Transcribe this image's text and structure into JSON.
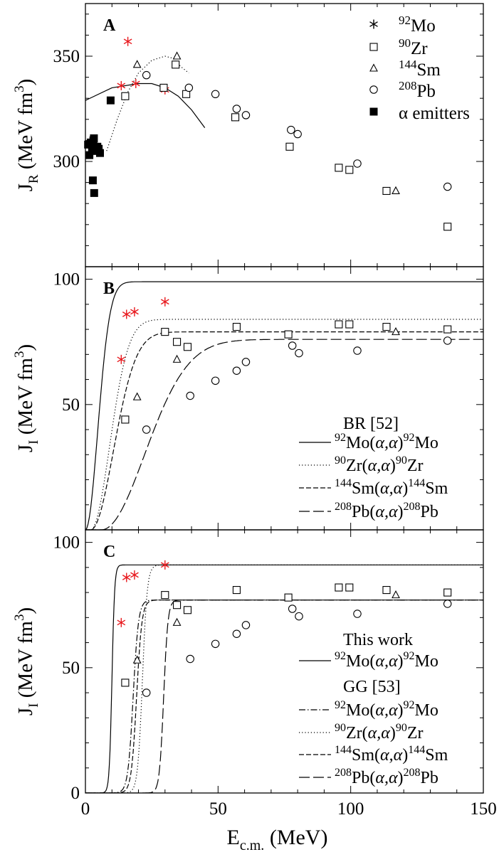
{
  "chart_data": [
    {
      "type": "scatter",
      "panel_label": "A",
      "ylabel_main": "J",
      "ylabel_sub": "R",
      "ylabel_rest": " (MeV fm",
      "ylabel_sup": "3",
      "ylabel_close": ")",
      "xlim": [
        0,
        150
      ],
      "ylim": [
        250,
        375
      ],
      "yticks": [
        300,
        350
      ],
      "ytick_labels": [
        "300",
        "350"
      ],
      "legend": [
        {
          "sup": "92",
          "text": "Mo",
          "marker": "asterisk"
        },
        {
          "sup": "90",
          "text": "Zr",
          "marker": "square"
        },
        {
          "sup": "144",
          "text": "Sm",
          "marker": "triangle"
        },
        {
          "sup": "208",
          "text": "Pb",
          "marker": "circle"
        },
        {
          "sup": "",
          "text": "α emitters",
          "marker": "filled-square"
        }
      ],
      "series": [
        {
          "marker": "asterisk",
          "color": "#e8191e",
          "points": [
            [
              13.5,
              336
            ],
            [
              16,
              357
            ],
            [
              19,
              337
            ],
            [
              30,
              334
            ]
          ]
        },
        {
          "marker": "square",
          "color": "#000000",
          "points": [
            [
              15,
              331
            ],
            [
              29.5,
              335
            ],
            [
              34,
              346
            ],
            [
              38,
              332
            ],
            [
              56.5,
              321
            ],
            [
              77,
              307
            ],
            [
              95.5,
              297
            ],
            [
              99.5,
              296
            ],
            [
              113.5,
              286
            ],
            [
              136.5,
              269
            ]
          ]
        },
        {
          "marker": "triangle",
          "color": "#000000",
          "points": [
            [
              19.5,
              346
            ],
            [
              34.5,
              350
            ],
            [
              117,
              286
            ]
          ]
        },
        {
          "marker": "circle",
          "color": "#000000",
          "points": [
            [
              23,
              341
            ],
            [
              39,
              335
            ],
            [
              49,
              332
            ],
            [
              57,
              325
            ],
            [
              60.5,
              322
            ],
            [
              77.5,
              315
            ],
            [
              80,
              313
            ],
            [
              102.5,
              299
            ],
            [
              136.5,
              288
            ]
          ]
        },
        {
          "marker": "filled-square",
          "color": "#000000",
          "points": [
            [
              1,
              308
            ],
            [
              1.5,
              303
            ],
            [
              2,
              309
            ],
            [
              2.5,
              305
            ],
            [
              3,
              310
            ],
            [
              3.2,
              311
            ],
            [
              3.5,
              307
            ],
            [
              4,
              305
            ],
            [
              4.5,
              307
            ],
            [
              5,
              306
            ],
            [
              5.5,
              304
            ],
            [
              2.8,
              291
            ],
            [
              3.3,
              285
            ],
            [
              9.5,
              329
            ]
          ]
        }
      ],
      "curves": [
        {
          "style": "solid",
          "points": [
            [
              0,
              329
            ],
            [
              10,
              335
            ],
            [
              20,
              337
            ],
            [
              25,
              337
            ],
            [
              30,
              335
            ],
            [
              35,
              331
            ],
            [
              40,
              324.5
            ],
            [
              45,
              316
            ]
          ]
        },
        {
          "style": "dotted",
          "points": [
            [
              8,
              305
            ],
            [
              12,
              320
            ],
            [
              16,
              333
            ],
            [
              20,
              342
            ],
            [
              25,
              348
            ],
            [
              30,
              350
            ],
            [
              33,
              349
            ],
            [
              36,
              345
            ],
            [
              39,
              342
            ]
          ]
        }
      ]
    },
    {
      "type": "line",
      "panel_label": "B",
      "ylabel_main": "J",
      "ylabel_sub": "I",
      "ylabel_rest": " (MeV fm",
      "ylabel_sup": "3",
      "ylabel_close": ")",
      "xlim": [
        0,
        150
      ],
      "ylim": [
        0,
        105
      ],
      "yticks": [
        50,
        100
      ],
      "ytick_labels": [
        "50",
        "100"
      ],
      "legend_title": "BR [52]",
      "legend": [
        {
          "style": "solid",
          "a": "92",
          "b": "Mo(",
          "c": "α,α",
          "d": ")",
          "e": "92",
          "f": "Mo"
        },
        {
          "style": "dotted",
          "a": "90",
          "b": "Zr(",
          "c": "α,α",
          "d": ")",
          "e": "90",
          "f": "Zr"
        },
        {
          "style": "dashed",
          "a": "144",
          "b": "Sm(",
          "c": "α,α",
          "d": ")",
          "e": "144",
          "f": "Sm"
        },
        {
          "style": "longdash",
          "a": "208",
          "b": "Pb(",
          "c": "α,α",
          "d": ")",
          "e": "208",
          "f": "Pb"
        }
      ],
      "series": [
        {
          "marker": "asterisk",
          "color": "#e8191e",
          "points": [
            [
              13.5,
              68
            ],
            [
              15.5,
              86
            ],
            [
              18.5,
              87
            ],
            [
              30,
              91
            ]
          ]
        },
        {
          "marker": "square",
          "color": "#000000",
          "points": [
            [
              15,
              44
            ],
            [
              30,
              79
            ],
            [
              34.5,
              75
            ],
            [
              38.5,
              73
            ],
            [
              57,
              81
            ],
            [
              76.5,
              78
            ],
            [
              95.5,
              82
            ],
            [
              99.5,
              82
            ],
            [
              113.5,
              81
            ],
            [
              136.5,
              80
            ]
          ]
        },
        {
          "marker": "triangle",
          "color": "#000000",
          "points": [
            [
              19.5,
              53
            ],
            [
              34.5,
              68
            ],
            [
              117,
              79
            ]
          ]
        },
        {
          "marker": "circle",
          "color": "#000000",
          "points": [
            [
              23,
              40
            ],
            [
              39.5,
              53.5
            ],
            [
              49,
              59.5
            ],
            [
              57,
              63.5
            ],
            [
              60.5,
              67
            ],
            [
              78,
              73.5
            ],
            [
              80.5,
              70.5
            ],
            [
              102.5,
              71.5
            ],
            [
              136.5,
              75.5
            ]
          ]
        }
      ],
      "curves": [
        {
          "style": "solid",
          "V": 99,
          "x0": 0,
          "w": 6.5,
          "p": 2
        },
        {
          "style": "dotted",
          "V": 84,
          "x0": 2,
          "w": 10,
          "p": 2
        },
        {
          "style": "dashed",
          "V": 79,
          "x0": 2,
          "w": 12,
          "p": 2
        },
        {
          "style": "longdash",
          "V": 76,
          "x0": 6,
          "w": 23,
          "p": 2
        }
      ]
    },
    {
      "type": "line",
      "panel_label": "C",
      "ylabel_main": "J",
      "ylabel_sub": "I",
      "ylabel_rest": " (MeV fm",
      "ylabel_sup": "3",
      "ylabel_close": ")",
      "xlim": [
        0,
        150
      ],
      "ylim": [
        0,
        105
      ],
      "yticks": [
        0,
        50,
        100
      ],
      "ytick_labels": [
        "0",
        "50",
        "100"
      ],
      "xticks": [
        0,
        50,
        100,
        150
      ],
      "xtick_labels": [
        "0",
        "50",
        "100",
        "150"
      ],
      "xlabel_main": "E",
      "xlabel_sub": "c.m.",
      "xlabel_rest": " (MeV)",
      "legend_groups": [
        {
          "title": "This work",
          "entries": [
            {
              "style": "solid",
              "a": "92",
              "b": "Mo(",
              "c": "α,α",
              "d": ")",
              "e": "92",
              "f": "Mo"
            }
          ]
        },
        {
          "title": "GG [53]",
          "entries": [
            {
              "style": "dashdot",
              "a": "92",
              "b": "Mo(",
              "c": "α,α",
              "d": ")",
              "e": "92",
              "f": "Mo"
            },
            {
              "style": "dotted",
              "a": "90",
              "b": "Zr(",
              "c": "α,α",
              "d": ")",
              "e": "90",
              "f": "Zr"
            },
            {
              "style": "dashed",
              "a": "144",
              "b": "Sm(",
              "c": "α,α",
              "d": ")",
              "e": "144",
              "f": "Sm"
            },
            {
              "style": "longdash",
              "a": "208",
              "b": "Pb(",
              "c": "α,α",
              "d": ")",
              "e": "208",
              "f": "Pb"
            }
          ]
        }
      ],
      "series": [
        {
          "marker": "asterisk",
          "color": "#e8191e",
          "points": [
            [
              13.5,
              68
            ],
            [
              15.5,
              86
            ],
            [
              18.5,
              87
            ],
            [
              30,
              91
            ]
          ]
        },
        {
          "marker": "square",
          "color": "#000000",
          "points": [
            [
              15,
              44
            ],
            [
              30,
              79
            ],
            [
              34.5,
              75
            ],
            [
              38.5,
              73
            ],
            [
              57,
              81
            ],
            [
              76.5,
              78
            ],
            [
              95.5,
              82
            ],
            [
              99.5,
              82
            ],
            [
              113.5,
              81
            ],
            [
              136.5,
              80
            ]
          ]
        },
        {
          "marker": "triangle",
          "color": "#000000",
          "points": [
            [
              19.5,
              53
            ],
            [
              34.5,
              68
            ],
            [
              117,
              79
            ]
          ]
        },
        {
          "marker": "circle",
          "color": "#000000",
          "points": [
            [
              23,
              40
            ],
            [
              39.5,
              53.5
            ],
            [
              49,
              59.5
            ],
            [
              57,
              63.5
            ],
            [
              60.5,
              67
            ],
            [
              78,
              73.5
            ],
            [
              80.5,
              70.5
            ],
            [
              102.5,
              71.5
            ],
            [
              136.5,
              75.5
            ]
          ]
        }
      ],
      "curves": [
        {
          "style": "solid",
          "V": 91,
          "c": 10,
          "k": 0.5
        },
        {
          "style": "dotted",
          "V": 91,
          "c": 21.5,
          "k": 0.9
        },
        {
          "style": "dashdot",
          "V": 77,
          "c": 18,
          "k": 1.0
        },
        {
          "style": "dashed",
          "V": 77,
          "c": 19.3,
          "k": 1.0
        },
        {
          "style": "longdash",
          "V": 77,
          "c": 29.5,
          "k": 0.8
        }
      ]
    }
  ]
}
